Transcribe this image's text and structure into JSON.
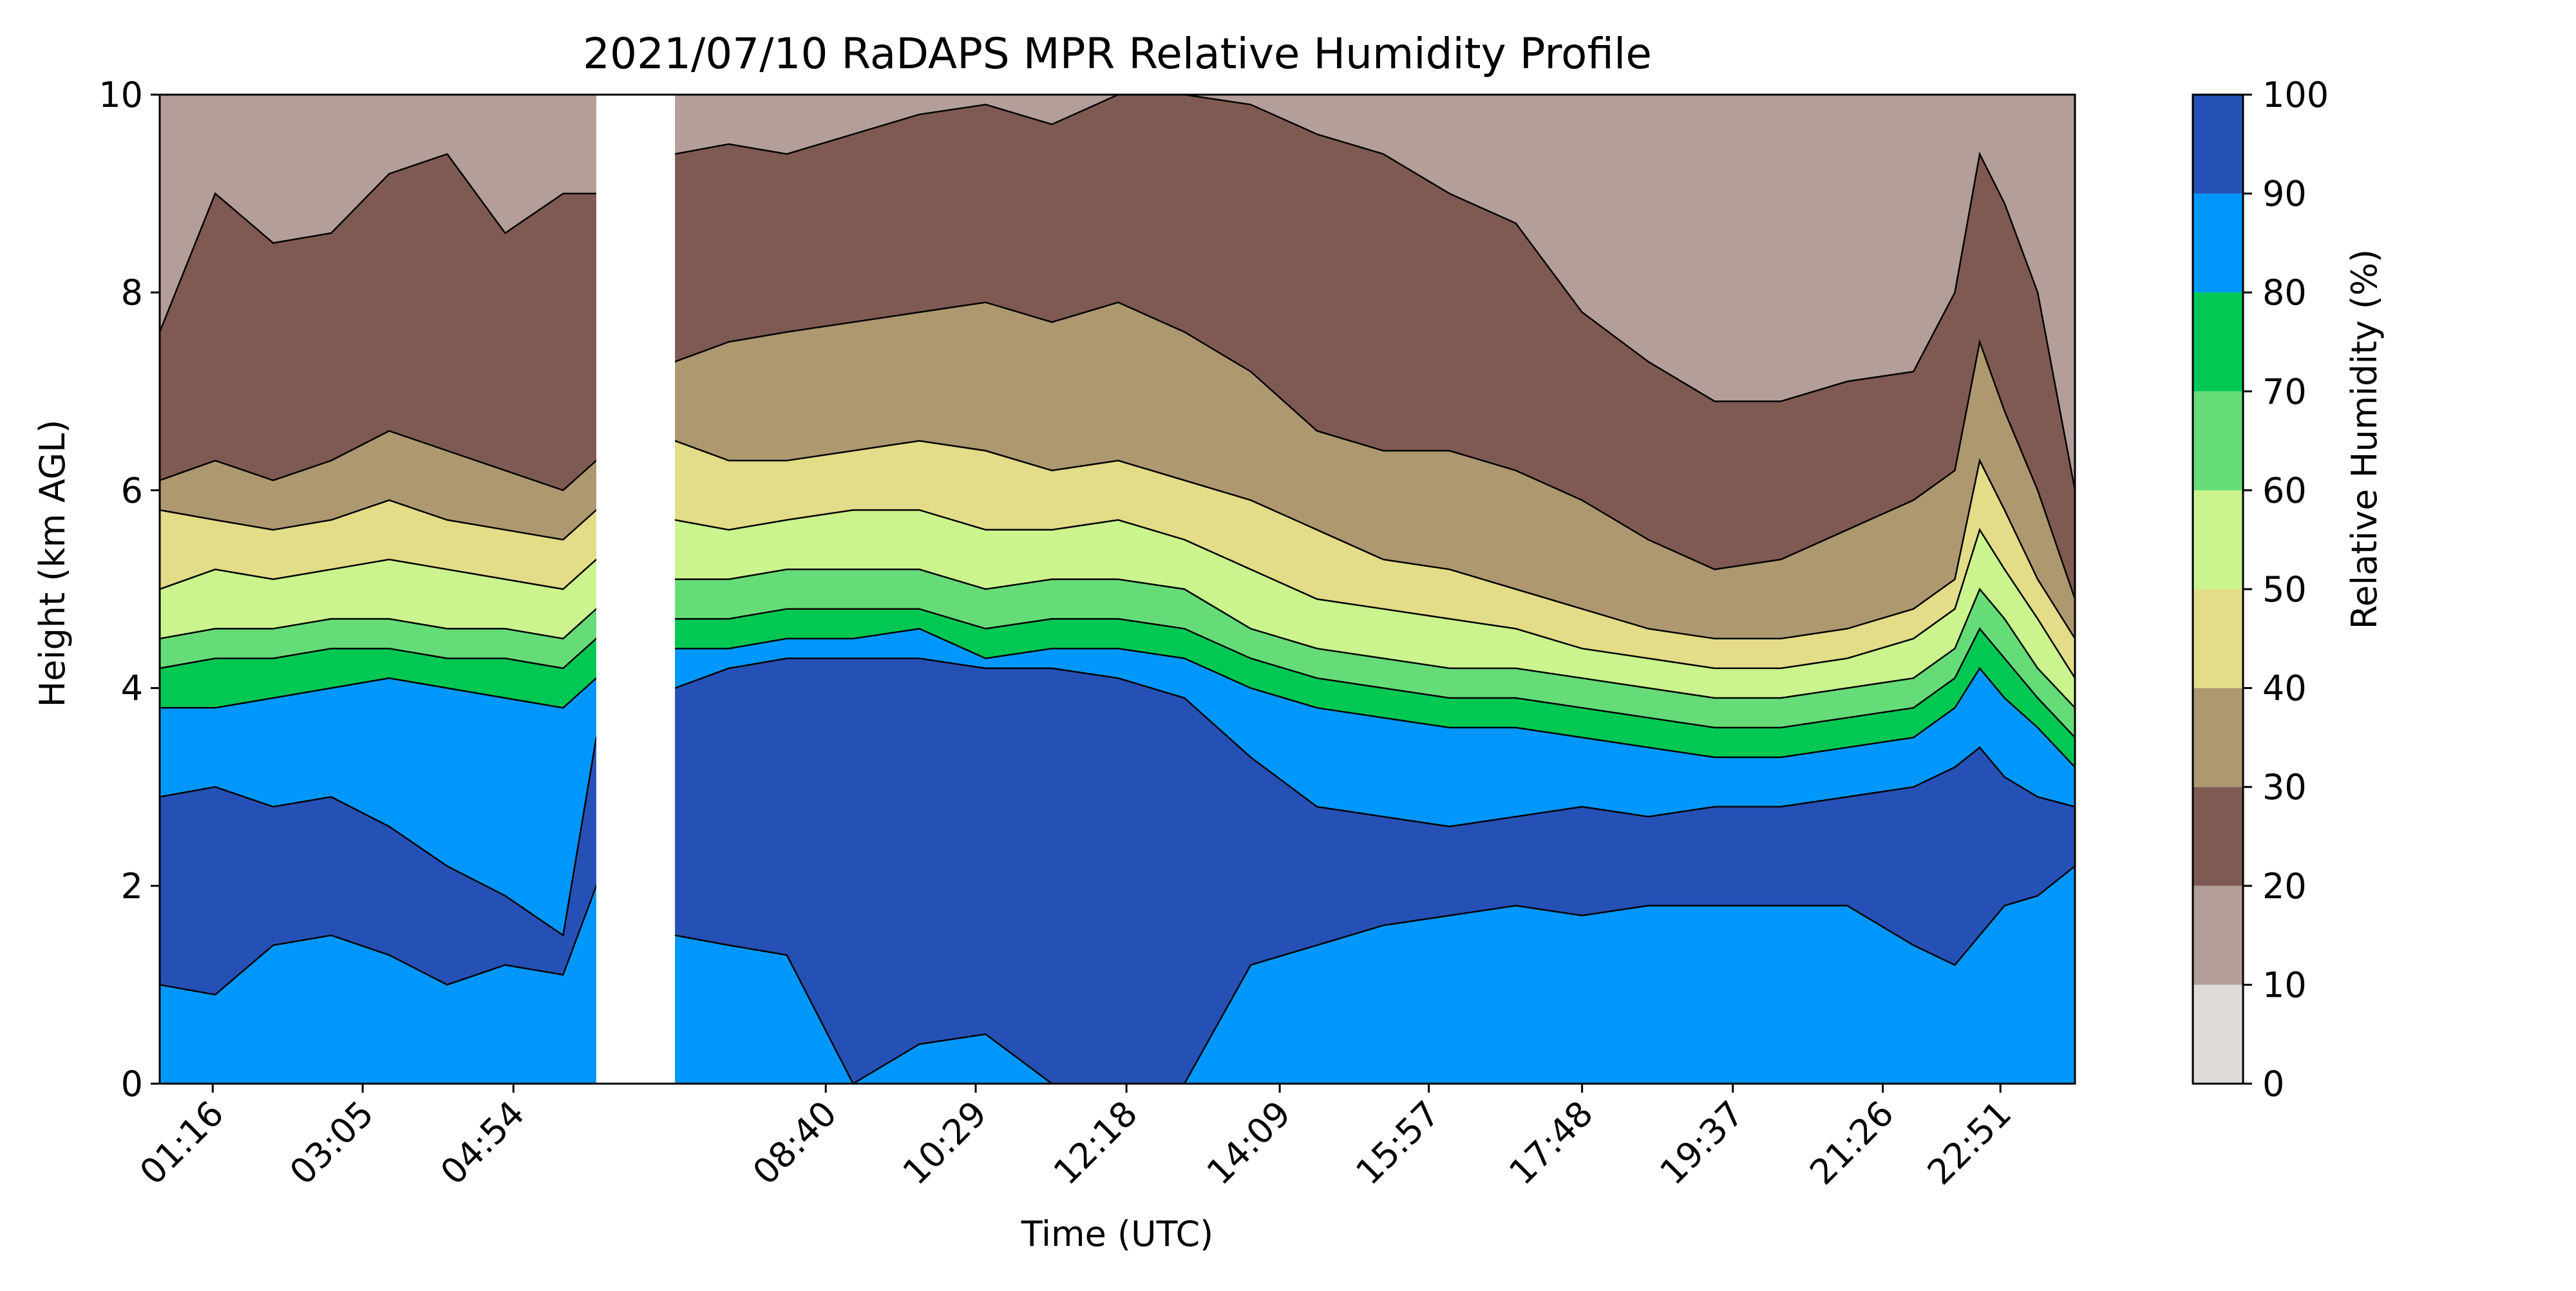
{
  "chart_data": {
    "type": "heatmap",
    "subtype": "filled-contour",
    "title": "2021/07/10 RaDAPS MPR Relative Humidity Profile",
    "xlabel": "Time (UTC)",
    "ylabel": "Height (km AGL)",
    "colorbar_label": "Relative Humidity (%)",
    "x_ticks": [
      "01:16",
      "03:05",
      "04:54",
      "08:40",
      "10:29",
      "12:18",
      "14:09",
      "15:57",
      "17:48",
      "19:37",
      "21:26",
      "22:51"
    ],
    "x_tick_hours": [
      1.27,
      3.08,
      4.9,
      8.67,
      10.48,
      12.3,
      14.15,
      15.95,
      17.8,
      19.62,
      21.43,
      22.85
    ],
    "xlim_hours": [
      0.63,
      23.75
    ],
    "y_ticks": [
      "0",
      "2",
      "4",
      "6",
      "8",
      "10"
    ],
    "ylim": [
      0,
      10
    ],
    "levels": [
      0,
      10,
      20,
      30,
      40,
      50,
      60,
      70,
      80,
      90,
      100
    ],
    "level_labels": [
      "0",
      "10",
      "20",
      "30",
      "40",
      "50",
      "60",
      "70",
      "80",
      "90",
      "100"
    ],
    "colors": [
      "#e0dcda",
      "#b39e99",
      "#7f5a52",
      "#ad9870",
      "#e3dc88",
      "#cbf48e",
      "#65dc78",
      "#00c853",
      "#0097fc",
      "#2551b6"
    ],
    "data_gap_hours": [
      5.9,
      6.85
    ],
    "isolines_km": {
      "x_hours": [
        0.63,
        1.3,
        2.0,
        2.7,
        3.4,
        4.1,
        4.8,
        5.5,
        5.9,
        6.85,
        7.5,
        8.2,
        9.0,
        9.8,
        10.6,
        11.4,
        12.2,
        13.0,
        13.8,
        14.6,
        15.4,
        16.2,
        17.0,
        17.8,
        18.6,
        19.4,
        20.2,
        21.0,
        21.8,
        22.3,
        22.6,
        22.9,
        23.3,
        23.75
      ],
      "rh10": [
        10,
        10,
        10,
        10,
        10,
        10,
        10,
        10,
        10,
        10,
        10,
        10,
        10,
        10,
        10,
        10,
        10,
        10,
        10,
        10,
        10,
        10,
        10,
        10,
        10,
        10,
        10,
        10,
        10,
        10,
        10,
        10,
        10,
        10
      ],
      "rh20": [
        7.6,
        9.0,
        8.5,
        8.6,
        9.2,
        9.4,
        8.6,
        9.0,
        9.0,
        9.4,
        9.5,
        9.4,
        9.6,
        9.8,
        9.9,
        9.7,
        10.0,
        10.0,
        9.9,
        9.6,
        9.4,
        9.0,
        8.7,
        7.8,
        7.3,
        6.9,
        6.9,
        7.1,
        7.2,
        8.0,
        9.4,
        8.9,
        8.0,
        6.0
      ],
      "rh30": [
        6.1,
        6.3,
        6.1,
        6.3,
        6.6,
        6.4,
        6.2,
        6.0,
        6.3,
        7.3,
        7.5,
        7.6,
        7.7,
        7.8,
        7.9,
        7.7,
        7.9,
        7.6,
        7.2,
        6.6,
        6.4,
        6.4,
        6.2,
        5.9,
        5.5,
        5.2,
        5.3,
        5.6,
        5.9,
        6.2,
        7.5,
        6.8,
        6.0,
        4.9
      ],
      "rh40": [
        5.8,
        5.7,
        5.6,
        5.7,
        5.9,
        5.7,
        5.6,
        5.5,
        5.8,
        6.5,
        6.3,
        6.3,
        6.4,
        6.5,
        6.4,
        6.2,
        6.3,
        6.1,
        5.9,
        5.6,
        5.3,
        5.2,
        5.0,
        4.8,
        4.6,
        4.5,
        4.5,
        4.6,
        4.8,
        5.1,
        6.3,
        5.8,
        5.1,
        4.5
      ],
      "rh50": [
        5.0,
        5.2,
        5.1,
        5.2,
        5.3,
        5.2,
        5.1,
        5.0,
        5.3,
        5.7,
        5.6,
        5.7,
        5.8,
        5.8,
        5.6,
        5.6,
        5.7,
        5.5,
        5.2,
        4.9,
        4.8,
        4.7,
        4.6,
        4.4,
        4.3,
        4.2,
        4.2,
        4.3,
        4.5,
        4.8,
        5.6,
        5.2,
        4.7,
        4.1
      ],
      "rh60": [
        4.5,
        4.6,
        4.6,
        4.7,
        4.7,
        4.6,
        4.6,
        4.5,
        4.8,
        5.1,
        5.1,
        5.2,
        5.2,
        5.2,
        5.0,
        5.1,
        5.1,
        5.0,
        4.6,
        4.4,
        4.3,
        4.2,
        4.2,
        4.1,
        4.0,
        3.9,
        3.9,
        4.0,
        4.1,
        4.4,
        5.0,
        4.7,
        4.2,
        3.8
      ],
      "rh70": [
        4.2,
        4.3,
        4.3,
        4.4,
        4.4,
        4.3,
        4.3,
        4.2,
        4.5,
        4.7,
        4.7,
        4.8,
        4.8,
        4.8,
        4.6,
        4.7,
        4.7,
        4.6,
        4.3,
        4.1,
        4.0,
        3.9,
        3.9,
        3.8,
        3.7,
        3.6,
        3.6,
        3.7,
        3.8,
        4.1,
        4.6,
        4.3,
        3.9,
        3.5
      ],
      "rh80": [
        3.8,
        3.8,
        3.9,
        4.0,
        4.1,
        4.0,
        3.9,
        3.8,
        4.1,
        4.4,
        4.4,
        4.5,
        4.5,
        4.6,
        4.3,
        4.4,
        4.4,
        4.3,
        4.0,
        3.8,
        3.7,
        3.6,
        3.6,
        3.5,
        3.4,
        3.3,
        3.3,
        3.4,
        3.5,
        3.8,
        4.2,
        3.9,
        3.6,
        3.2
      ],
      "rh90": [
        2.9,
        3.0,
        2.8,
        2.9,
        2.6,
        2.2,
        1.9,
        1.5,
        3.5,
        4.0,
        4.2,
        4.3,
        4.3,
        4.3,
        4.2,
        4.2,
        4.1,
        3.9,
        3.3,
        2.8,
        2.7,
        2.6,
        2.7,
        2.8,
        2.7,
        2.8,
        2.8,
        2.9,
        3.0,
        3.2,
        3.4,
        3.1,
        2.9,
        2.8
      ],
      "rh90_base": [
        1.0,
        0.9,
        1.4,
        1.5,
        1.3,
        1.0,
        1.2,
        1.1,
        2.0,
        1.5,
        1.4,
        1.3,
        0.0,
        0.4,
        0.5,
        0.0,
        0.0,
        0.0,
        1.2,
        1.4,
        1.6,
        1.7,
        1.8,
        1.7,
        1.8,
        1.8,
        1.8,
        1.8,
        1.4,
        1.2,
        1.5,
        1.8,
        1.9,
        2.2
      ]
    }
  }
}
